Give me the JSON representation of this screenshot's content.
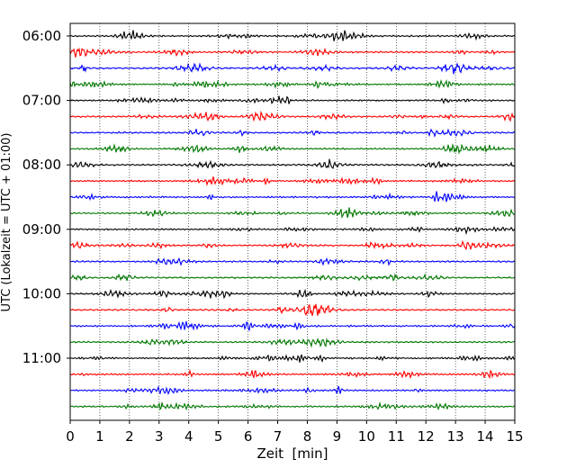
{
  "chart_data": {
    "type": "line",
    "title": "",
    "xlabel": "Zeit  [min]",
    "ylabel": "UTC (Lokalzeit = UTC + 01:00)",
    "xlim": [
      0,
      15
    ],
    "x_ticks": [
      0,
      1,
      2,
      3,
      4,
      5,
      6,
      7,
      8,
      9,
      10,
      11,
      12,
      13,
      14,
      15
    ],
    "y_tick_labels": [
      "06:00",
      "07:00",
      "08:00",
      "09:00",
      "10:00",
      "11:00"
    ],
    "grid": "vertical dotted lines at each minute",
    "line_colors": [
      "#000000",
      "#ff0000",
      "#0000ff",
      "#007700"
    ],
    "traces": [
      {
        "start": "06:00"
      },
      {
        "start": "06:15"
      },
      {
        "start": "06:30"
      },
      {
        "start": "06:45"
      },
      {
        "start": "07:00"
      },
      {
        "start": "07:15"
      },
      {
        "start": "07:30"
      },
      {
        "start": "07:45"
      },
      {
        "start": "08:00"
      },
      {
        "start": "08:15"
      },
      {
        "start": "08:30"
      },
      {
        "start": "08:45"
      },
      {
        "start": "09:00"
      },
      {
        "start": "09:15"
      },
      {
        "start": "09:30"
      },
      {
        "start": "09:45"
      },
      {
        "start": "10:00"
      },
      {
        "start": "10:15"
      },
      {
        "start": "10:30"
      },
      {
        "start": "10:45"
      },
      {
        "start": "11:00"
      },
      {
        "start": "11:15"
      },
      {
        "start": "11:30"
      },
      {
        "start": "11:45"
      }
    ]
  }
}
